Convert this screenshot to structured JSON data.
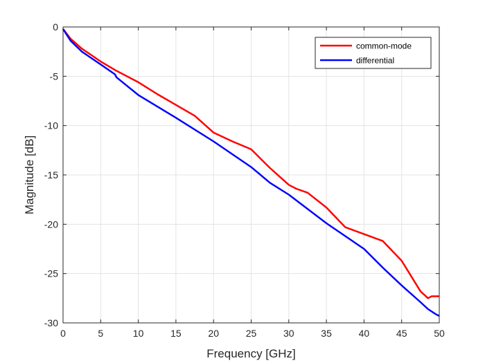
{
  "chart_data": {
    "type": "line",
    "title": "",
    "xlabel": "Frequency [GHz]",
    "ylabel": "Magnitude [dB]",
    "xlim": [
      0,
      50
    ],
    "ylim": [
      -30,
      0
    ],
    "xticks": [
      0,
      5,
      10,
      15,
      20,
      25,
      30,
      35,
      40,
      45,
      50
    ],
    "yticks": [
      0,
      -5,
      -10,
      -15,
      -20,
      -25,
      -30
    ],
    "grid": true,
    "legend_position": "top-right",
    "series": [
      {
        "name": "common-mode",
        "color": "#ff0000",
        "x": [
          0,
          1,
          2.5,
          5,
          7,
          10,
          12.5,
          15,
          17.5,
          20,
          22.5,
          25,
          27.5,
          30,
          31,
          32.5,
          35,
          37.5,
          40,
          42.5,
          45,
          47.5,
          48.5,
          49,
          50
        ],
        "y": [
          -0.2,
          -1.2,
          -2.2,
          -3.5,
          -4.4,
          -5.6,
          -6.8,
          -7.9,
          -9.0,
          -10.7,
          -11.6,
          -12.4,
          -14.3,
          -16.0,
          -16.4,
          -16.8,
          -18.3,
          -20.3,
          -21.0,
          -21.7,
          -23.7,
          -26.8,
          -27.5,
          -27.3,
          -27.3
        ]
      },
      {
        "name": "differential",
        "color": "#0000ff",
        "x": [
          0,
          1,
          2.5,
          5,
          6.9,
          7.1,
          10,
          15,
          20,
          25,
          27.5,
          30,
          35,
          40,
          42.5,
          45,
          47.5,
          48.5,
          49.5,
          50
        ],
        "y": [
          -0.2,
          -1.4,
          -2.5,
          -3.8,
          -4.8,
          -5.1,
          -6.9,
          -9.2,
          -11.6,
          -14.2,
          -15.8,
          -17.0,
          -19.9,
          -22.5,
          -24.4,
          -26.2,
          -27.9,
          -28.6,
          -29.1,
          -29.3
        ]
      }
    ]
  }
}
